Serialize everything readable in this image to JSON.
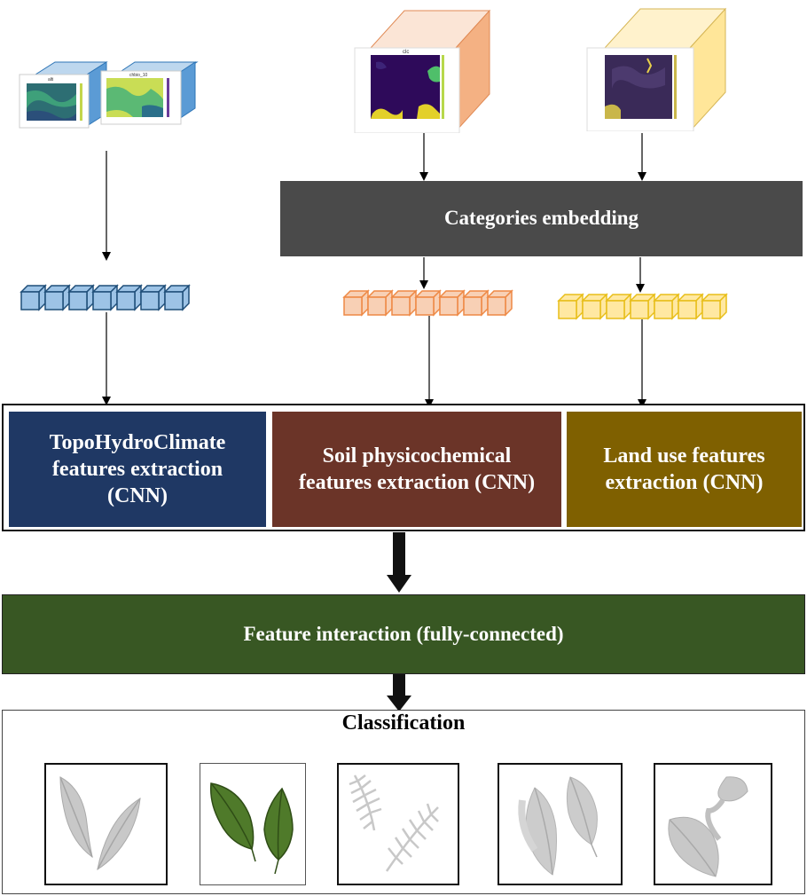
{
  "inputs": {
    "topo_maps": [
      {
        "title": "alti"
      },
      {
        "title": "chbio_10"
      }
    ],
    "soil_map": {
      "title": "clc"
    },
    "landuse_map": {
      "title": ""
    }
  },
  "embedding": {
    "label": "Categories embedding"
  },
  "extraction": {
    "topo": "TopoHydroClimate features extraction (CNN)",
    "soil": "Soil physicochemical features extraction (CNN)",
    "land": "Land use features extraction (CNN)"
  },
  "interaction": {
    "label": "Feature interaction (fully-connected)"
  },
  "classification": {
    "title": "Classification",
    "classes": [
      {
        "icon": "banana-leaves-icon",
        "style": "grey"
      },
      {
        "icon": "green-leaves-icon",
        "style": "green"
      },
      {
        "icon": "palm-fronds-icon",
        "style": "grey"
      },
      {
        "icon": "broad-leaves-icon",
        "style": "grey"
      },
      {
        "icon": "round-leaves-icon",
        "style": "grey"
      }
    ]
  },
  "colors": {
    "embedding": "#4a4a4a",
    "topo": "#1f3864",
    "soil": "#6b3428",
    "land": "#7f6000",
    "interaction": "#385723",
    "topo_cube": "#9dc3e6",
    "soil_cube": "#f4b183",
    "land_cube": "#ffd966"
  }
}
